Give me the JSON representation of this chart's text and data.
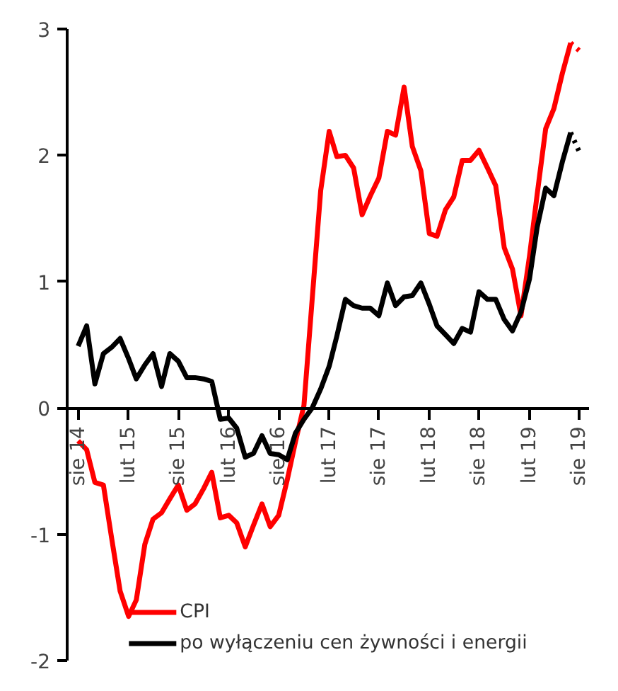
{
  "chart_data": {
    "type": "line",
    "xlim": [
      "2014-06-22",
      "2019-09-06"
    ],
    "ylim": [
      -2,
      3
    ],
    "yticks": [
      -2,
      -1,
      0,
      1,
      2,
      3
    ],
    "xticks": [
      {
        "value": "2014-08",
        "label": "sie 14"
      },
      {
        "value": "2015-02",
        "label": "lut 15"
      },
      {
        "value": "2015-08",
        "label": "sie 15"
      },
      {
        "value": "2016-02",
        "label": "lut 16"
      },
      {
        "value": "2016-08",
        "label": "sie 16"
      },
      {
        "value": "2017-02",
        "label": "lut 17"
      },
      {
        "value": "2017-08",
        "label": "sie 17"
      },
      {
        "value": "2018-02",
        "label": "lut 18"
      },
      {
        "value": "2018-08",
        "label": "sie 18"
      },
      {
        "value": "2019-02",
        "label": "lut 19"
      },
      {
        "value": "2019-08",
        "label": "sie 19"
      }
    ],
    "x": [
      "2014-08",
      "2014-09",
      "2014-10",
      "2014-11",
      "2014-12",
      "2015-01",
      "2015-02",
      "2015-03",
      "2015-04",
      "2015-05",
      "2015-06",
      "2015-07",
      "2015-08",
      "2015-09",
      "2015-10",
      "2015-11",
      "2015-12",
      "2016-01",
      "2016-02",
      "2016-03",
      "2016-04",
      "2016-05",
      "2016-06",
      "2016-07",
      "2016-08",
      "2016-09",
      "2016-10",
      "2016-11",
      "2016-12",
      "2017-01",
      "2017-02",
      "2017-03",
      "2017-04",
      "2017-05",
      "2017-06",
      "2017-07",
      "2017-08",
      "2017-09",
      "2017-10",
      "2017-11",
      "2017-12",
      "2018-01",
      "2018-02",
      "2018-03",
      "2018-04",
      "2018-05",
      "2018-06",
      "2018-07",
      "2018-08",
      "2018-09",
      "2018-10",
      "2018-11",
      "2018-12",
      "2019-01",
      "2019-02",
      "2019-03",
      "2019-04",
      "2019-05",
      "2019-06",
      "2019-07"
    ],
    "series": [
      {
        "name": "CPI",
        "color": "#ff0000",
        "values": [
          -0.26,
          -0.33,
          -0.59,
          -0.61,
          -1.03,
          -1.45,
          -1.65,
          -1.52,
          -1.08,
          -0.88,
          -0.83,
          -0.72,
          -0.61,
          -0.81,
          -0.76,
          -0.64,
          -0.51,
          -0.87,
          -0.85,
          -0.91,
          -1.1,
          -0.93,
          -0.76,
          -0.94,
          -0.85,
          -0.57,
          -0.27,
          0.02,
          0.86,
          1.72,
          2.19,
          1.99,
          2.0,
          1.9,
          1.53,
          1.68,
          1.82,
          2.19,
          2.16,
          2.54,
          2.07,
          1.88,
          1.38,
          1.36,
          1.57,
          1.67,
          1.96,
          1.96,
          2.04,
          1.9,
          1.76,
          1.27,
          1.1,
          0.73,
          1.2,
          1.69,
          2.21,
          2.37,
          2.65,
          2.89
        ]
      },
      {
        "name": "po wyłączeniu cen żywności i energii",
        "color": "#000000",
        "values": [
          0.49,
          0.65,
          0.19,
          0.43,
          0.48,
          0.55,
          0.39,
          0.23,
          0.34,
          0.43,
          0.17,
          0.43,
          0.37,
          0.24,
          0.24,
          0.23,
          0.21,
          -0.09,
          -0.08,
          -0.16,
          -0.39,
          -0.36,
          -0.22,
          -0.36,
          -0.37,
          -0.41,
          -0.2,
          -0.09,
          0.0,
          0.15,
          0.33,
          0.57,
          0.86,
          0.81,
          0.79,
          0.79,
          0.73,
          0.99,
          0.81,
          0.88,
          0.89,
          0.99,
          0.82,
          0.65,
          0.58,
          0.51,
          0.63,
          0.6,
          0.92,
          0.86,
          0.86,
          0.7,
          0.61,
          0.76,
          1.02,
          1.43,
          1.74,
          1.68,
          1.95,
          2.18
        ]
      },
      {
        "color": "#ff0000",
        "line_style": "dotted",
        "x": [
          "2019-07",
          "2019-08"
        ],
        "values": [
          2.89,
          2.83
        ]
      },
      {
        "color": "#000000",
        "line_style": "dotted",
        "x": [
          "2019-07",
          "2019-08"
        ],
        "values": [
          2.18,
          2.03
        ]
      }
    ],
    "legend": "bottom"
  }
}
